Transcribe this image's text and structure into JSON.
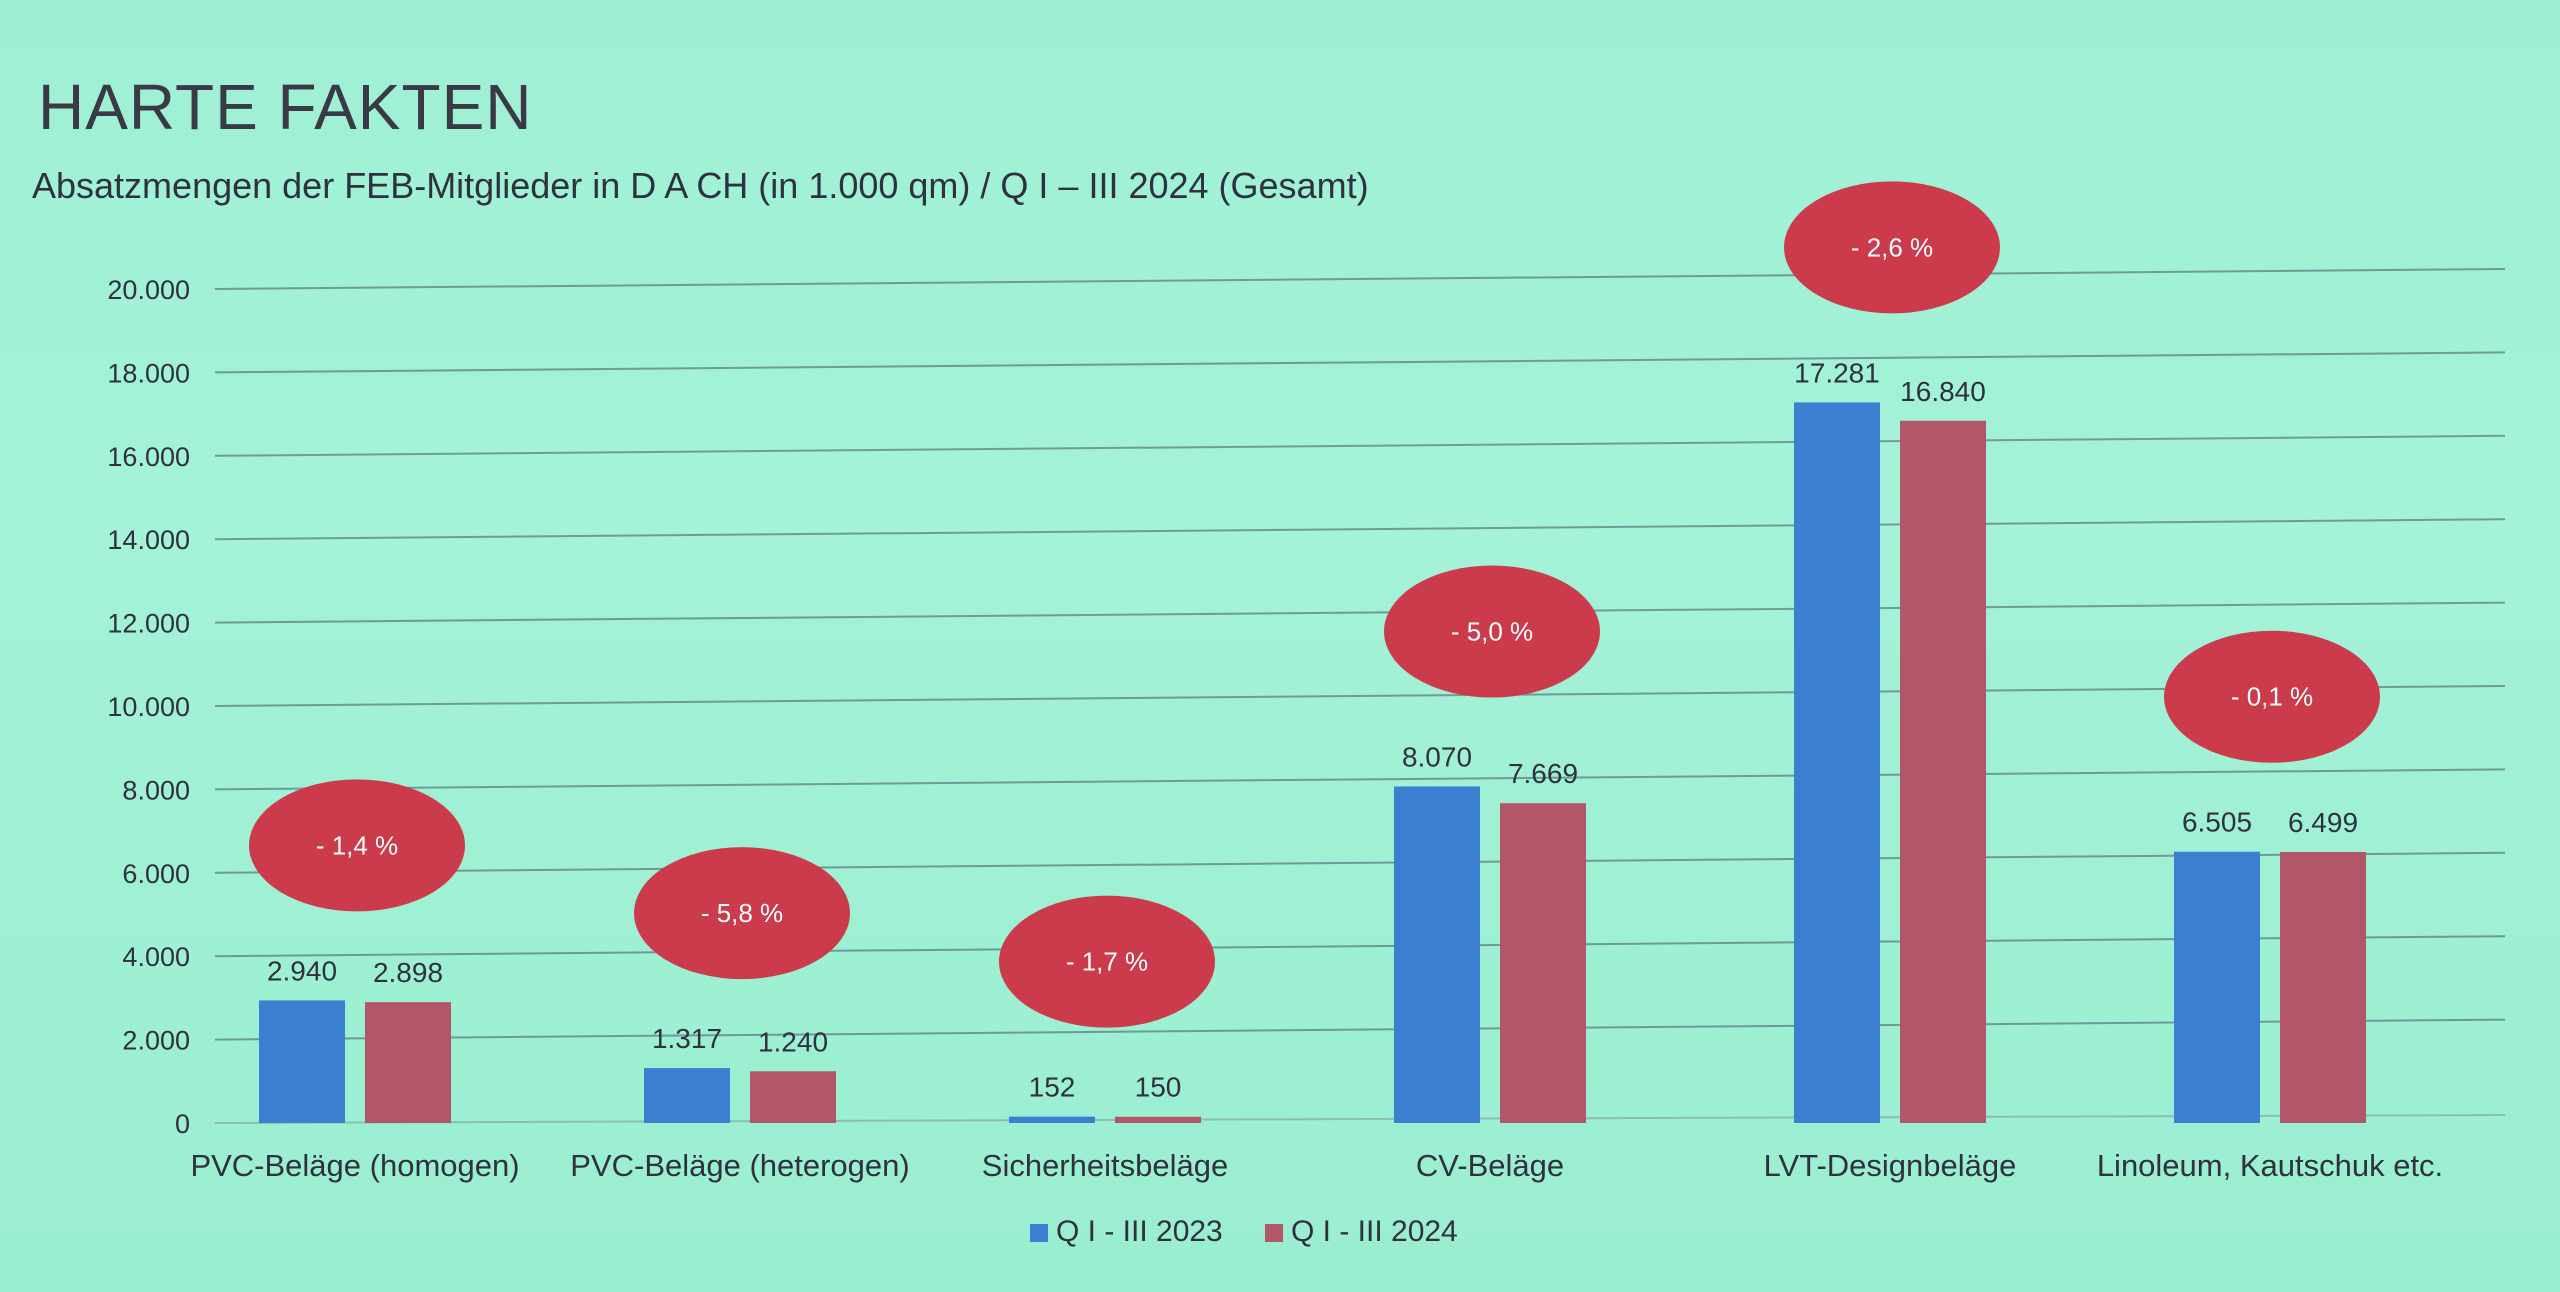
{
  "page": {
    "title": "HARTE FAKTEN",
    "subtitle": "Absatzmengen der FEB-Mitglieder in D A CH (in 1.000 qm) / Q I – III 2024 (Gesamt)"
  },
  "chart_data": {
    "type": "bar",
    "title": "HARTE FAKTEN",
    "subtitle": "Absatzmengen der FEB-Mitglieder in D A CH (in 1.000 qm) / Q I – III 2024 (Gesamt)",
    "xlabel": "",
    "ylabel": "",
    "ylim": [
      0,
      20000
    ],
    "yticks": [
      0,
      2000,
      4000,
      6000,
      8000,
      10000,
      12000,
      14000,
      16000,
      18000,
      20000
    ],
    "ytick_labels": [
      "0",
      "2.000",
      "4.000",
      "6.000",
      "8.000",
      "10.000",
      "12.000",
      "14.000",
      "16.000",
      "18.000",
      "20.000"
    ],
    "grid": true,
    "legend_position": "bottom-center",
    "categories": [
      "PVC-Beläge (homogen)",
      "PVC-Beläge (heterogen)",
      "Sicherheitsbeläge",
      "CV-Beläge",
      "LVT-Designbeläge",
      "Linoleum, Kautschuk etc."
    ],
    "series": [
      {
        "name": "Q I - III 2023",
        "color": "#3a7fd0",
        "values": [
          2940,
          1317,
          152,
          8070,
          17281,
          6505
        ],
        "labels": [
          "2.940",
          "1.317",
          "152",
          "8.070",
          "17.281",
          "6.505"
        ]
      },
      {
        "name": "Q I - III 2024",
        "color": "#b2566a",
        "values": [
          2898,
          1240,
          150,
          7669,
          16840,
          6499
        ],
        "labels": [
          "2.898",
          "1.240",
          "150",
          "7.669",
          "16.840",
          "6.499"
        ]
      }
    ],
    "changes": [
      "- 1,4 %",
      "- 5,8 %",
      "- 1,7 %",
      "- 5,0 %",
      "- 2,6 %",
      "- 0,1  %"
    ],
    "change_color": "#cc3b4c"
  }
}
